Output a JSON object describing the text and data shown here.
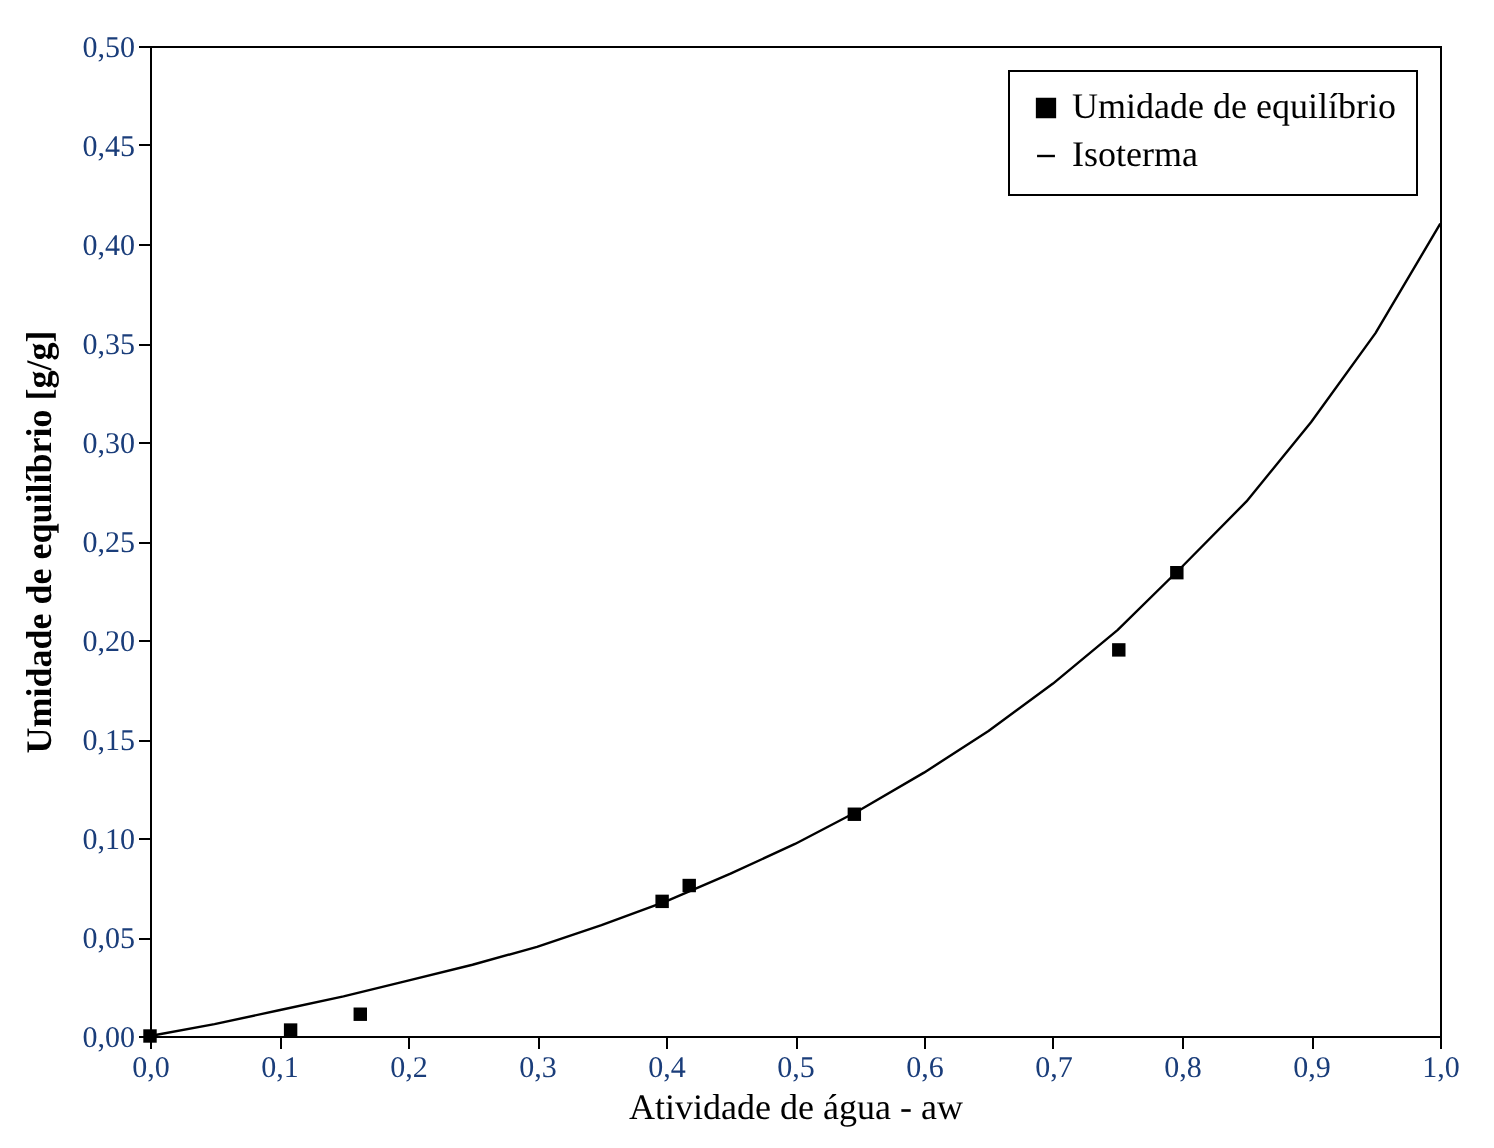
{
  "chart_data": {
    "type": "scatter",
    "xlabel": "Atividade de água - aw",
    "ylabel": "Umidade de equilíbrio [g/g]",
    "xlim": [
      0,
      1
    ],
    "ylim": [
      0,
      0.5
    ],
    "xticks": [
      {
        "value": 0,
        "label": "0,0"
      },
      {
        "value": 0.1,
        "label": "0,1"
      },
      {
        "value": 0.2,
        "label": "0,2"
      },
      {
        "value": 0.3,
        "label": "0,3"
      },
      {
        "value": 0.4,
        "label": "0,4"
      },
      {
        "value": 0.5,
        "label": "0,5"
      },
      {
        "value": 0.6,
        "label": "0,6"
      },
      {
        "value": 0.7,
        "label": "0,7"
      },
      {
        "value": 0.8,
        "label": "0,8"
      },
      {
        "value": 0.9,
        "label": "0,9"
      },
      {
        "value": 1,
        "label": "1,0"
      }
    ],
    "yticks": [
      {
        "value": 0,
        "label": "0,00"
      },
      {
        "value": 0.05,
        "label": "0,05"
      },
      {
        "value": 0.1,
        "label": "0,10"
      },
      {
        "value": 0.15,
        "label": "0,15"
      },
      {
        "value": 0.2,
        "label": "0,20"
      },
      {
        "value": 0.25,
        "label": "0,25"
      },
      {
        "value": 0.3,
        "label": "0,30"
      },
      {
        "value": 0.35,
        "label": "0,35"
      },
      {
        "value": 0.4,
        "label": "0,40"
      },
      {
        "value": 0.45,
        "label": "0,45"
      },
      {
        "value": 0.5,
        "label": "0,50"
      }
    ],
    "grid": false,
    "legend": "top right",
    "series": [
      {
        "name": "Umidade de equilíbrio",
        "marker": "square",
        "color": "#000000",
        "x": [
          0,
          0.109,
          0.163,
          0.397,
          0.418,
          0.546,
          0.751,
          0.796
        ],
        "values": [
          0,
          0.003,
          0.011,
          0.068,
          0.076,
          0.112,
          0.195,
          0.234
        ]
      },
      {
        "name": "Isoterma",
        "type": "line",
        "marker": "none",
        "color": "#000000",
        "x": [
          0,
          0.05,
          0.1,
          0.15,
          0.2,
          0.25,
          0.3,
          0.35,
          0.4,
          0.45,
          0.5,
          0.55,
          0.6,
          0.65,
          0.7,
          0.75,
          0.8,
          0.85,
          0.9,
          0.95,
          1
        ],
        "values": [
          0,
          0.006,
          0.013,
          0.02,
          0.028,
          0.036,
          0.045,
          0.056,
          0.068,
          0.082,
          0.097,
          0.114,
          0.133,
          0.154,
          0.178,
          0.205,
          0.237,
          0.27,
          0.31,
          0.355,
          0.41
        ]
      }
    ]
  }
}
